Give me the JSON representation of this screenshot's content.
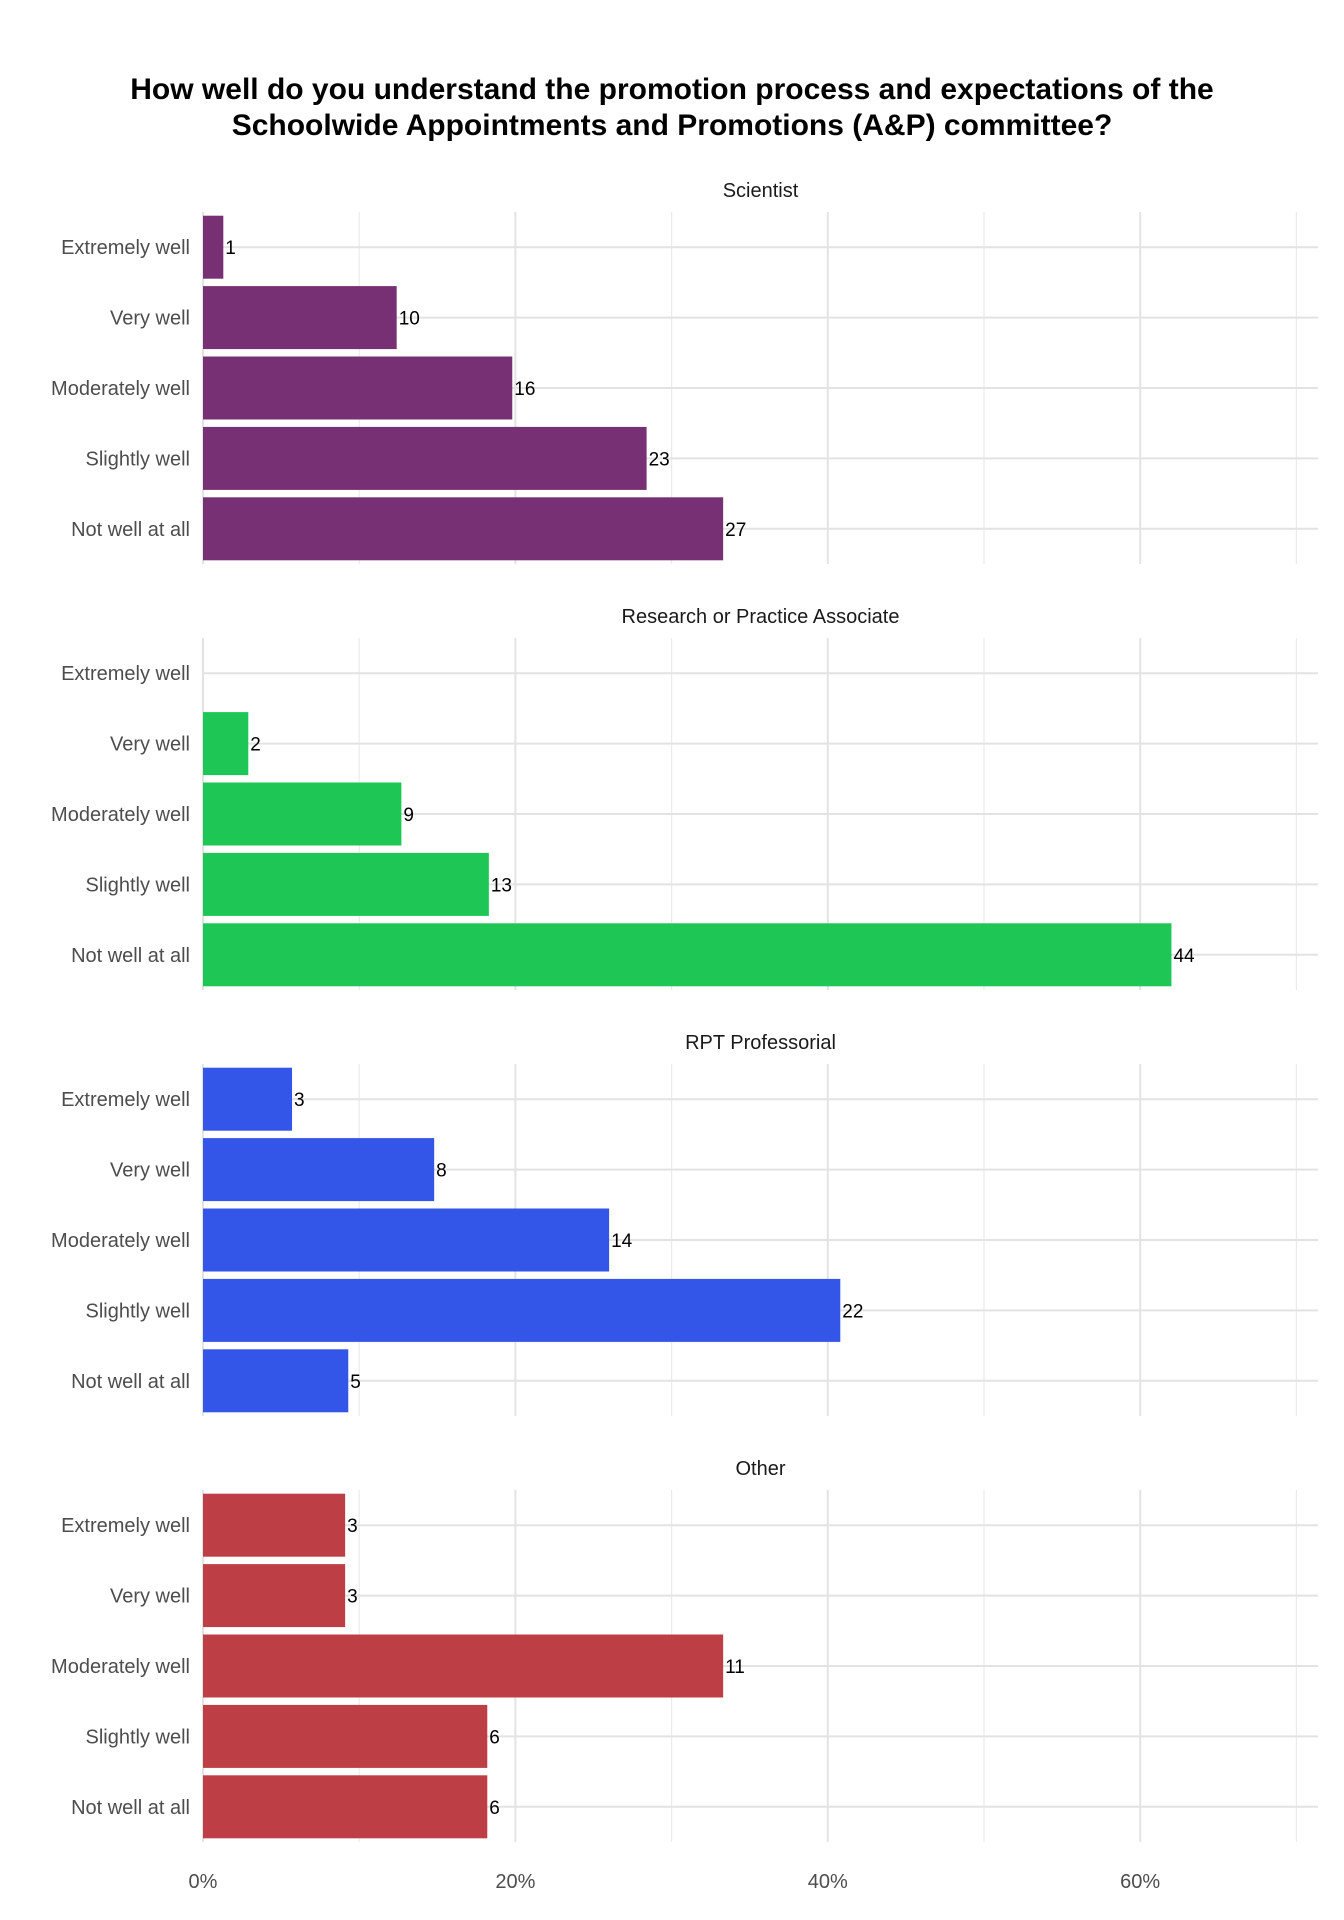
{
  "chart_data": {
    "type": "bar",
    "orientation": "horizontal",
    "title_lines": [
      "How well do you understand the promotion process and expectations of the",
      "Schoolwide Appointments and Promotions (A&P) committee?"
    ],
    "categories": [
      "Extremely well",
      "Very well",
      "Moderately well",
      "Slightly well",
      "Not well at all"
    ],
    "xlim": [
      0,
      71
    ],
    "x_ticks": [
      0,
      20,
      40,
      60
    ],
    "x_tick_labels": [
      "0%",
      "20%",
      "40%",
      "60%"
    ],
    "grid": true,
    "value_unit": "percent",
    "panels": [
      {
        "facet": "Scientist",
        "color": "#773073",
        "counts": [
          1,
          10,
          16,
          23,
          27
        ],
        "percent": [
          1.3,
          12.4,
          19.8,
          28.4,
          33.3
        ]
      },
      {
        "facet": "Research or Practice Associate",
        "color": "#1DC655",
        "counts": [
          null,
          2,
          9,
          13,
          44
        ],
        "percent": [
          0,
          2.9,
          12.7,
          18.3,
          62.0
        ]
      },
      {
        "facet": "RPT Professorial",
        "color": "#3355E8",
        "counts": [
          3,
          8,
          14,
          22,
          5
        ],
        "percent": [
          5.7,
          14.8,
          26.0,
          40.8,
          9.3
        ]
      },
      {
        "facet": "Other",
        "color": "#BE3E46",
        "counts": [
          3,
          3,
          11,
          6,
          6
        ],
        "percent": [
          9.1,
          9.1,
          33.3,
          18.2,
          18.2
        ]
      }
    ]
  }
}
